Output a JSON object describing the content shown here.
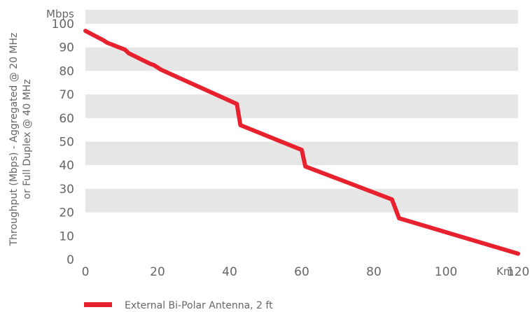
{
  "chart_data": {
    "type": "line",
    "xunit": "Km",
    "yunit": "Mbps",
    "ylabel_line1": "Throughput (Mbps) - Aggregated @ 20 MHz",
    "ylabel_line2": "or Full Duplex @ 40 MHz",
    "xlim": [
      0,
      120
    ],
    "ylim": [
      0,
      100
    ],
    "xticks": [
      "0",
      "20",
      "40",
      "60",
      "80",
      "100",
      "120"
    ],
    "yticks": [
      "0",
      "10",
      "20",
      "30",
      "40",
      "50",
      "60",
      "70",
      "80",
      "90",
      "100"
    ],
    "grid_bands": true,
    "legend_position": "bottom-left",
    "colors": {
      "series": "#e8212f",
      "band": "#e6e6e6"
    },
    "series": [
      {
        "name": "External Bi-Polar Antenna, 2 ft",
        "x": [
          0,
          5,
          6,
          11,
          12,
          18,
          19,
          21,
          42,
          43,
          60,
          61,
          85,
          87,
          120
        ],
        "y": [
          97,
          93,
          92,
          89,
          87.5,
          83,
          82.5,
          80.5,
          66,
          57,
          46.5,
          39.5,
          25.5,
          17.5,
          2.5
        ]
      }
    ]
  }
}
